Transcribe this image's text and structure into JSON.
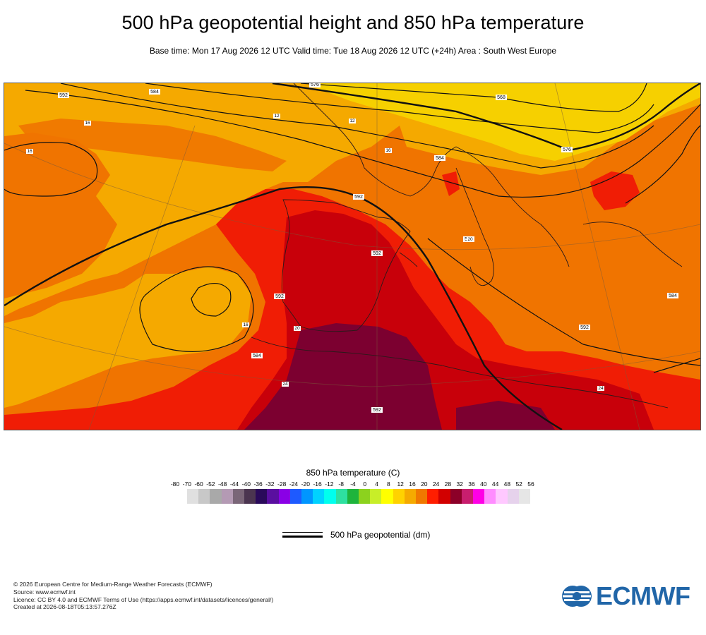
{
  "header": {
    "title": "500 hPa geopotential height and 850 hPa temperature",
    "subtitle": "Base time: Mon 17 Aug 2026 12 UTC Valid time: Tue 18 Aug 2026 12 UTC (+24h) Area : South West Europe"
  },
  "map": {
    "area": "South West Europe",
    "colors": {
      "t12": "#f6d000",
      "t16": "#f5a900",
      "t20": "#f07400",
      "t24": "#f01d05",
      "t28": "#c8000a",
      "t32": "#7c0030"
    },
    "contour_labels": [
      "592",
      "584",
      "576",
      "568",
      "592",
      "592",
      "592",
      "584",
      "576",
      "584",
      "592",
      "592",
      "592",
      "584"
    ],
    "temp_labels": [
      "12",
      "16",
      "16",
      "12",
      "16",
      "16",
      "20",
      "24",
      "20",
      "24"
    ]
  },
  "legend": {
    "title": "850 hPa temperature (C)",
    "ticks": [
      "-80",
      "-70",
      "-60",
      "-52",
      "-48",
      "-44",
      "-40",
      "-36",
      "-32",
      "-28",
      "-24",
      "-20",
      "-16",
      "-12",
      "-8",
      "-4",
      "0",
      "4",
      "8",
      "12",
      "16",
      "20",
      "24",
      "28",
      "32",
      "36",
      "40",
      "44",
      "48",
      "52",
      "56"
    ],
    "colors": [
      "#e0e0e0",
      "#c8c8c8",
      "#a9a9a9",
      "#b49ab4",
      "#7a6678",
      "#4b3550",
      "#2a0a5a",
      "#5a0fa0",
      "#8a00e6",
      "#1e5aff",
      "#0096ff",
      "#00d2ff",
      "#00ffee",
      "#2ee0a0",
      "#1eb43c",
      "#8cd21e",
      "#c8ee28",
      "#ffff00",
      "#ffd200",
      "#f5aa00",
      "#f07800",
      "#ff1e00",
      "#d20000",
      "#8c0028",
      "#c81e6e",
      "#ff00e6",
      "#ff8cff",
      "#ffc8ff",
      "#e6d2ec",
      "#e6e6e6"
    ],
    "contour_label": "500 hPa geopotential (dm)"
  },
  "footer": {
    "lines": [
      "© 2026 European Centre for Medium-Range Weather Forecasts (ECMWF)",
      "Source: www.ecmwf.int",
      "Licence: CC BY 4.0 and ECMWF Terms of Use (https://apps.ecmwf.int/datasets/licences/general/)",
      "Created at 2026-08-18T05:13:57.276Z"
    ],
    "logo_text": "ECMWF"
  }
}
